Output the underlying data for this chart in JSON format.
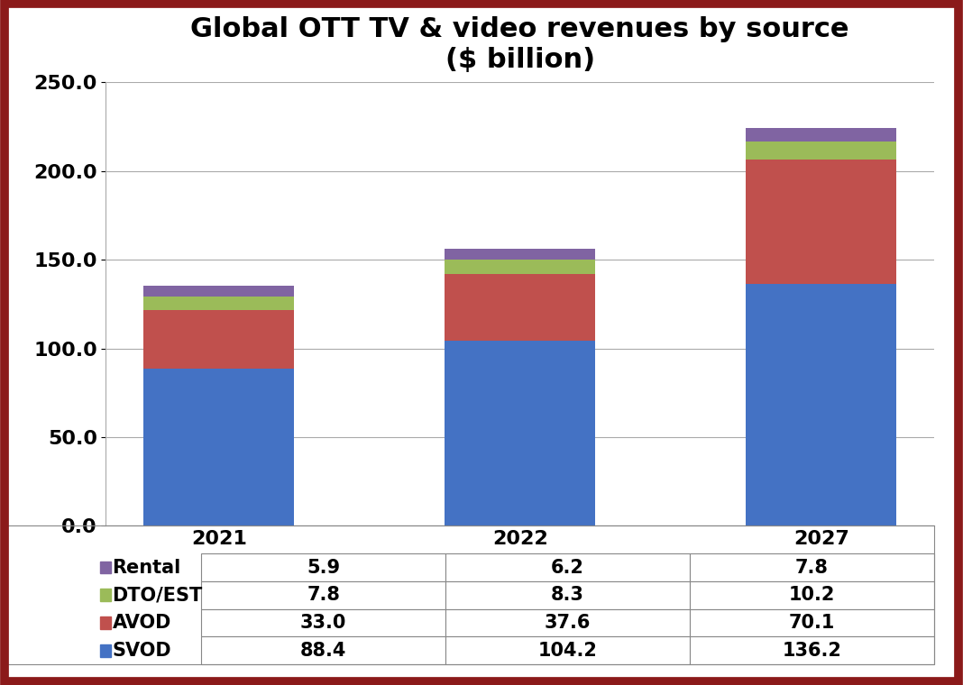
{
  "title": "Global OTT TV & video revenues by source\n($ billion)",
  "years": [
    "2021",
    "2022",
    "2027"
  ],
  "categories": [
    "SVOD",
    "AVOD",
    "DTO/EST",
    "Rental"
  ],
  "values": {
    "SVOD": [
      88.4,
      104.2,
      136.2
    ],
    "AVOD": [
      33.0,
      37.6,
      70.1
    ],
    "DTO/EST": [
      7.8,
      8.3,
      10.2
    ],
    "Rental": [
      5.9,
      6.2,
      7.8
    ]
  },
  "colors": {
    "SVOD": "#4472C4",
    "AVOD": "#C0504D",
    "DTO/EST": "#9BBB59",
    "Rental": "#8064A2"
  },
  "ylim": [
    0,
    250
  ],
  "yticks": [
    0,
    50,
    100,
    150,
    200,
    250
  ],
  "ytick_labels": [
    "0.0",
    "50.0",
    "100.0",
    "150.0",
    "200.0",
    "250.0"
  ],
  "bar_width": 0.5,
  "background_color": "#FFFFFF",
  "border_color": "#8B1A1A",
  "title_fontsize": 22,
  "tick_fontsize": 16,
  "table_fontsize": 15
}
